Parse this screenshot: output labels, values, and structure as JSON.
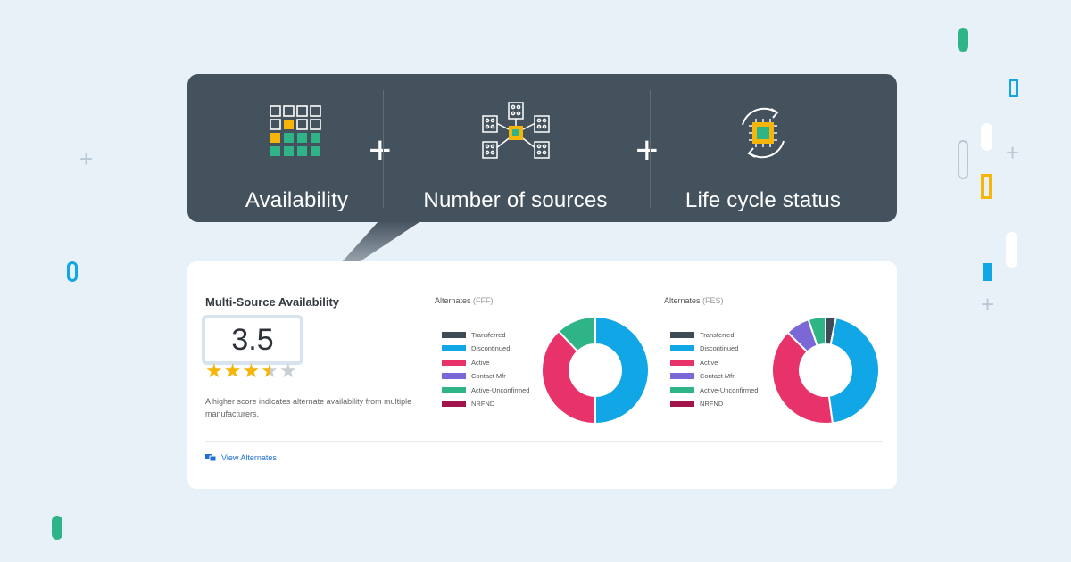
{
  "banner": {
    "features": [
      {
        "label": "Availability",
        "icon": "availability-grid-icon"
      },
      {
        "label": "Number of sources",
        "icon": "sources-network-icon"
      },
      {
        "label": "Life cycle status",
        "icon": "lifecycle-chip-icon"
      }
    ],
    "plus": "+"
  },
  "card": {
    "title": "Multi-Source Availability",
    "score": "3.5",
    "rating": 3.5,
    "rating_max": 5,
    "description": "A higher score indicates alternate availability from multiple manufacturers.",
    "link_label": "View Alternates",
    "link_icon": "alternates-icon"
  },
  "legend_labels": [
    "Transferred",
    "Discontinued",
    "Active",
    "Contact Mfr",
    "Active-Unconfirmed",
    "NRFND"
  ],
  "colors": {
    "transferred": "#3e4a55",
    "discontinued": "#11a6e6",
    "active": "#e8336a",
    "contact_mfr": "#7b68d6",
    "active_unconfirmed": "#2fb488",
    "nrfnd": "#a3154a",
    "star_filled": "#f5b50a",
    "star_empty": "#c9ced3"
  },
  "chart_data": [
    {
      "type": "pie",
      "variant": "donut",
      "title": "Alternates",
      "subtitle": "(FFF)",
      "categories": [
        "Transferred",
        "Discontinued",
        "Active",
        "Contact Mfr",
        "Active-Unconfirmed",
        "NRFND"
      ],
      "values": [
        0,
        50,
        38,
        0,
        12,
        0
      ]
    },
    {
      "type": "pie",
      "variant": "donut",
      "title": "Alternates",
      "subtitle": "(FES)",
      "categories": [
        "Transferred",
        "Discontinued",
        "Active",
        "Contact Mfr",
        "Active-Unconfirmed",
        "NRFND"
      ],
      "values": [
        3,
        43,
        38,
        7,
        5,
        0
      ]
    }
  ]
}
